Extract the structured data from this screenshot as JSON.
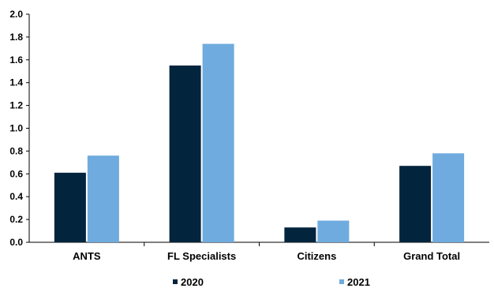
{
  "chart_data": {
    "type": "bar",
    "categories": [
      "ANTS",
      "FL Specialists",
      "Citizens",
      "Grand Total"
    ],
    "series": [
      {
        "name": "2020",
        "values": [
          0.61,
          1.55,
          0.13,
          0.67
        ],
        "color": "#02243d"
      },
      {
        "name": "2021",
        "values": [
          0.76,
          1.74,
          0.19,
          0.78
        ],
        "color": "#6fabde"
      }
    ],
    "yticks": [
      "0.0",
      "0.2",
      "0.4",
      "0.6",
      "0.8",
      "1.0",
      "1.2",
      "1.4",
      "1.6",
      "1.8",
      "2.0"
    ],
    "ylim": [
      0,
      2.0
    ],
    "title": "",
    "xlabel": "",
    "ylabel": "",
    "grid": false,
    "legend_position": "bottom"
  }
}
